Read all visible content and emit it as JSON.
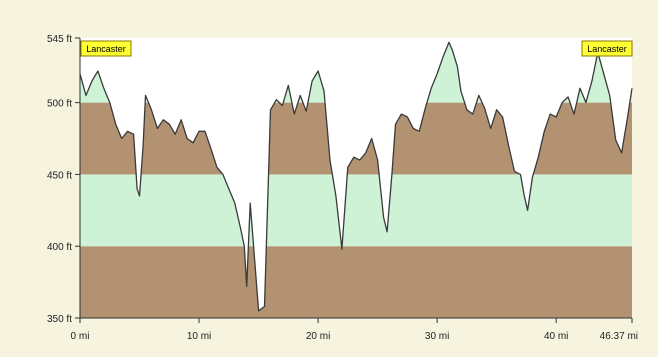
{
  "colors": {
    "page_bg": "#f6f3df",
    "plot_bg": "#ffffff",
    "band_brown": "#b39272",
    "band_green": "#cdf2d6",
    "profile_line": "#3a3a3a",
    "axis": "#333333",
    "label_bg": "#ffff33",
    "label_border": "#8a7a00"
  },
  "chart_data": {
    "type": "area",
    "title": "",
    "xlabel": "",
    "ylabel": "",
    "x_unit": "mi",
    "y_unit": "ft",
    "xlim": [
      0,
      46.37
    ],
    "ylim": [
      350,
      545
    ],
    "grid": false,
    "x_ticks": [
      0,
      10,
      20,
      30,
      40,
      46.37
    ],
    "x_tick_labels": [
      "0 mi",
      "10 mi",
      "20 mi",
      "30 mi",
      "40 mi",
      "46.37 mi"
    ],
    "y_ticks": [
      350,
      400,
      450,
      500,
      545
    ],
    "y_tick_labels": [
      "350 ft",
      "400 ft",
      "450 ft",
      "500 ft",
      "545 ft"
    ],
    "bands": [
      {
        "from": 350,
        "to": 400,
        "color": "brown"
      },
      {
        "from": 400,
        "to": 450,
        "color": "green"
      },
      {
        "from": 450,
        "to": 500,
        "color": "brown"
      },
      {
        "from": 500,
        "to": 545,
        "color": "green"
      }
    ],
    "annotations": [
      {
        "text": "Lancaster",
        "x": 0
      },
      {
        "text": "Lancaster",
        "x": 46.37
      }
    ],
    "series": [
      {
        "x": [
          0,
          0.5,
          1.0,
          1.5,
          2.0,
          2.5,
          3.0,
          3.5,
          4.0,
          4.5,
          4.8,
          5.0,
          5.3,
          5.5,
          6.0,
          6.5,
          7.0,
          7.5,
          8.0,
          8.5,
          9.0,
          9.5,
          10.0,
          10.5,
          11.0,
          11.5,
          12.0,
          12.5,
          13.0,
          13.5,
          13.8,
          14.0,
          14.3,
          14.6,
          15.0,
          15.5,
          16.0,
          16.5,
          17.0,
          17.5,
          18.0,
          18.5,
          19.0,
          19.5,
          20.0,
          20.5,
          21.0,
          21.5,
          22.0,
          22.5,
          23.0,
          23.5,
          24.0,
          24.5,
          25.0,
          25.5,
          25.8,
          26.2,
          26.5,
          27.0,
          27.5,
          28.0,
          28.5,
          29.0,
          29.5,
          30.0,
          30.5,
          31.0,
          31.3,
          31.7,
          32.0,
          32.5,
          33.0,
          33.5,
          34.0,
          34.5,
          35.0,
          35.5,
          36.0,
          36.5,
          37.0,
          37.3,
          37.6,
          38.0,
          38.5,
          39.0,
          39.5,
          40.0,
          40.5,
          41.0,
          41.5,
          42.0,
          42.5,
          43.0,
          43.5,
          44.0,
          44.5,
          45.0,
          45.5,
          46.0,
          46.37
        ],
        "values": [
          520,
          505,
          515,
          522,
          510,
          500,
          485,
          475,
          480,
          478,
          440,
          435,
          470,
          505,
          495,
          482,
          488,
          485,
          478,
          488,
          475,
          472,
          480,
          480,
          468,
          455,
          450,
          440,
          430,
          412,
          400,
          372,
          430,
          398,
          355,
          358,
          495,
          502,
          498,
          512,
          492,
          505,
          494,
          515,
          522,
          508,
          460,
          435,
          398,
          455,
          462,
          460,
          465,
          475,
          460,
          420,
          410,
          450,
          485,
          492,
          490,
          482,
          480,
          496,
          510,
          520,
          532,
          542,
          536,
          525,
          508,
          495,
          492,
          505,
          496,
          482,
          495,
          490,
          470,
          452,
          450,
          436,
          425,
          448,
          462,
          480,
          492,
          490,
          500,
          504,
          492,
          510,
          500,
          515,
          535,
          520,
          505,
          474,
          465,
          490,
          510
        ]
      }
    ]
  }
}
